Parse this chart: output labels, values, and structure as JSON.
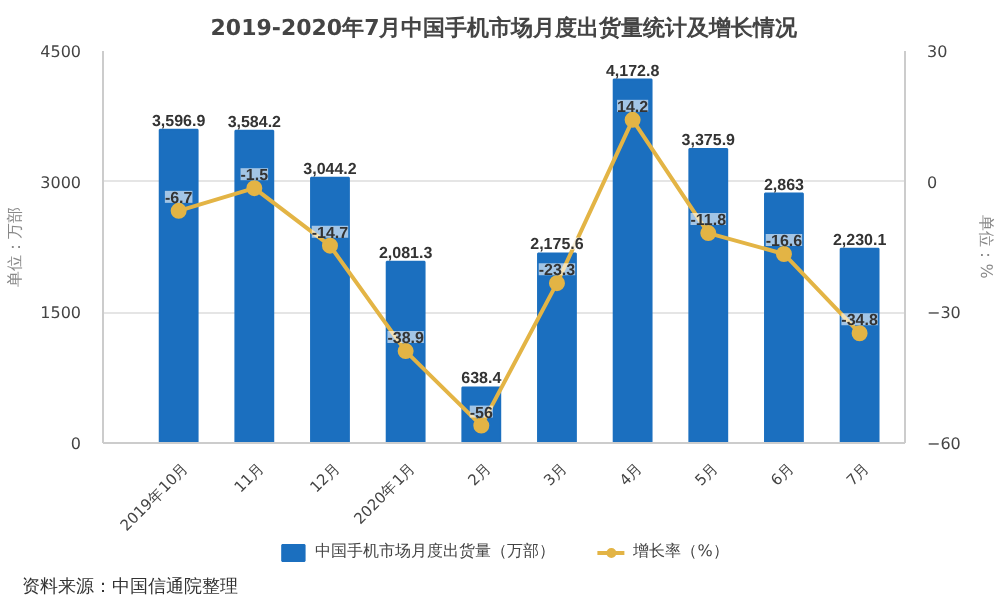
{
  "chart_data": {
    "type": "bar",
    "title": "2019-2020年7月中国手机市场月度出货量统计及增长情况",
    "categories": [
      "2019年10月",
      "11月",
      "12月",
      "2020年1月",
      "2月",
      "3月",
      "4月",
      "5月",
      "6月",
      "7月"
    ],
    "series": [
      {
        "name": "中国手机市场月度出货量（万部）",
        "color": "#1b6fbf",
        "values": [
          3596.9,
          3584.2,
          3044.2,
          2081.3,
          638.4,
          2175.6,
          4172.8,
          3375.9,
          2863,
          2230.1
        ],
        "value_labels": [
          "3,596.9",
          "3,584.2",
          "3,044.2",
          "2,081.3",
          "638.4",
          "2,175.6",
          "4,172.8",
          "3,375.9",
          "2,863",
          "2,230.1"
        ]
      },
      {
        "name": "增长率（%）",
        "color": "#e3b445",
        "type": "line",
        "axis": "y2",
        "marker": "circle",
        "values": [
          -6.7,
          -1.5,
          -14.7,
          -38.9,
          -56,
          -23.3,
          14.2,
          -11.8,
          -16.6,
          -34.8
        ],
        "data_labels": true
      }
    ],
    "ylabel": "单位：万部",
    "y2label": "单位：%",
    "ylim": [
      0,
      4500
    ],
    "yticks": [
      0,
      1500,
      3000,
      4500
    ],
    "y2lim": [
      -60,
      30
    ],
    "y2ticks": [
      -60,
      -30,
      0,
      30
    ],
    "grid": "y",
    "legend": "bottom",
    "annotations": [
      "资料来源：中国信通院整理"
    ]
  }
}
